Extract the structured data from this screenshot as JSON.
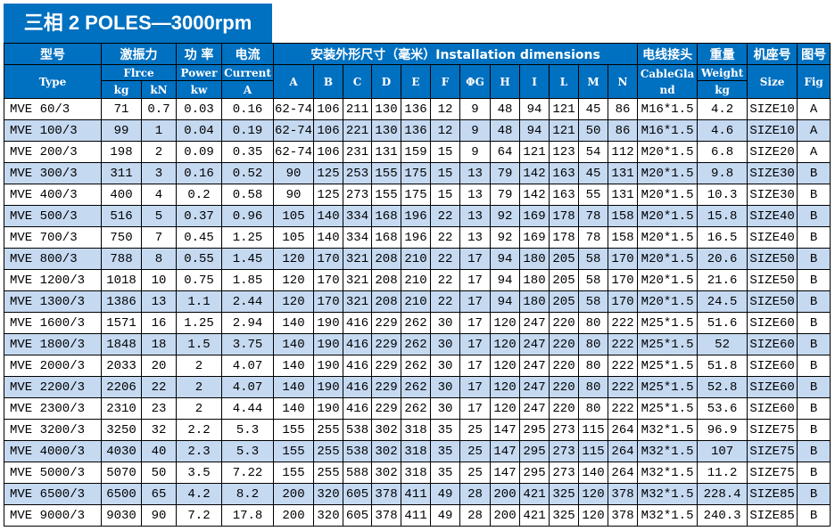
{
  "title": "三相 2 POLES—3000rpm",
  "header": {
    "type_cn": "型号",
    "type_en": "Type",
    "force_cn": "激振力",
    "force_en": "Flrce",
    "force_kg": "kg",
    "force_kn": "kN",
    "power_cn": "功 率",
    "power_en": "Power",
    "power_unit": "kw",
    "current_cn": "电流",
    "current_en": "Current",
    "current_unit": "A",
    "install": "安装外形尺寸（毫米）Installation dimensions",
    "dims": [
      "A",
      "B",
      "C",
      "D",
      "E",
      "F",
      "ΦG",
      "H",
      "I",
      "L",
      "M",
      "N"
    ],
    "cable_cn": "电线接头",
    "cable_en": "CableGland",
    "weight_cn": "重量",
    "weight_en": "Weight",
    "weight_unit": "kg",
    "size_cn": "机座号",
    "size_en": "Size",
    "fig_cn": "图号",
    "fig_en": "Fig"
  },
  "colors": {
    "header_bg": "#0070c0",
    "stripe": "#c5d9f1"
  },
  "rows": [
    [
      "MVE 60/3",
      "71",
      "0.7",
      "0.03",
      "0.16",
      "62-74",
      "106",
      "211",
      "130",
      "136",
      "12",
      "9",
      "48",
      "94",
      "121",
      "45",
      "86",
      "M16*1.5",
      "4.2",
      "SIZE10",
      "A"
    ],
    [
      "MVE 100/3",
      "99",
      "1",
      "0.04",
      "0.19",
      "62-74",
      "106",
      "221",
      "130",
      "136",
      "12",
      "9",
      "48",
      "94",
      "121",
      "50",
      "86",
      "M16*1.5",
      "4.6",
      "SIZE10",
      "A"
    ],
    [
      "MVE 200/3",
      "198",
      "2",
      "0.09",
      "0.35",
      "62-74",
      "106",
      "231",
      "131",
      "159",
      "15",
      "9",
      "64",
      "121",
      "123",
      "54",
      "112",
      "M20*1.5",
      "6.8",
      "SIZE20",
      "A"
    ],
    [
      "MVE 300/3",
      "311",
      "3",
      "0.16",
      "0.52",
      "90",
      "125",
      "253",
      "155",
      "175",
      "15",
      "13",
      "79",
      "142",
      "163",
      "45",
      "131",
      "M20*1.5",
      "9.8",
      "SIZE30",
      "B"
    ],
    [
      "MVE 400/3",
      "400",
      "4",
      "0.2",
      "0.58",
      "90",
      "125",
      "273",
      "155",
      "175",
      "15",
      "13",
      "79",
      "142",
      "163",
      "55",
      "131",
      "M20*1.5",
      "10.3",
      "SIZE30",
      "B"
    ],
    [
      "MVE 500/3",
      "516",
      "5",
      "0.37",
      "0.96",
      "105",
      "140",
      "334",
      "168",
      "196",
      "22",
      "13",
      "92",
      "169",
      "178",
      "78",
      "158",
      "M20*1.5",
      "15.8",
      "SIZE40",
      "B"
    ],
    [
      "MVE 700/3",
      "750",
      "7",
      "0.45",
      "1.25",
      "105",
      "140",
      "334",
      "168",
      "196",
      "22",
      "13",
      "92",
      "169",
      "178",
      "78",
      "158",
      "M20*1.5",
      "16.5",
      "SIZE40",
      "B"
    ],
    [
      "MVE 800/3",
      "788",
      "8",
      "0.55",
      "1.45",
      "120",
      "170",
      "321",
      "208",
      "210",
      "22",
      "17",
      "94",
      "180",
      "205",
      "58",
      "170",
      "M20*1.5",
      "20.6",
      "SIZE50",
      "B"
    ],
    [
      "MVE 1200/3",
      "1018",
      "10",
      "0.75",
      "1.85",
      "120",
      "170",
      "321",
      "208",
      "210",
      "22",
      "17",
      "94",
      "180",
      "205",
      "58",
      "170",
      "M20*1.5",
      "21.6",
      "SIZE50",
      "B"
    ],
    [
      "MVE 1300/3",
      "1386",
      "13",
      "1.1",
      "2.44",
      "120",
      "170",
      "321",
      "208",
      "210",
      "22",
      "17",
      "94",
      "180",
      "205",
      "58",
      "170",
      "M20*1.5",
      "24.5",
      "SIZE50",
      "B"
    ],
    [
      "MVE 1600/3",
      "1571",
      "16",
      "1.25",
      "2.94",
      "140",
      "190",
      "416",
      "229",
      "262",
      "30",
      "17",
      "120",
      "247",
      "220",
      "80",
      "222",
      "M25*1.5",
      "51.6",
      "SIZE60",
      "B"
    ],
    [
      "MVE 1800/3",
      "1848",
      "18",
      "1.5",
      "3.75",
      "140",
      "190",
      "416",
      "229",
      "262",
      "30",
      "17",
      "120",
      "247",
      "220",
      "80",
      "222",
      "M25*1.5",
      "52",
      "SIZE60",
      "B"
    ],
    [
      "MVE 2000/3",
      "2033",
      "20",
      "2",
      "4.07",
      "140",
      "190",
      "416",
      "229",
      "262",
      "30",
      "17",
      "120",
      "247",
      "220",
      "80",
      "222",
      "M25*1.5",
      "51.8",
      "SIZE60",
      "B"
    ],
    [
      "MVE 2200/3",
      "2206",
      "22",
      "2",
      "4.07",
      "140",
      "190",
      "416",
      "229",
      "262",
      "30",
      "17",
      "120",
      "247",
      "220",
      "80",
      "222",
      "M25*1.5",
      "52.8",
      "SIZE60",
      "B"
    ],
    [
      "MVE 2300/3",
      "2310",
      "23",
      "2",
      "4.44",
      "140",
      "190",
      "416",
      "229",
      "262",
      "30",
      "17",
      "120",
      "247",
      "220",
      "80",
      "222",
      "M25*1.5",
      "53.6",
      "SIZE60",
      "B"
    ],
    [
      "MVE 3200/3",
      "3250",
      "32",
      "2.2",
      "5.3",
      "155",
      "255",
      "538",
      "302",
      "318",
      "35",
      "25",
      "147",
      "295",
      "273",
      "115",
      "264",
      "M32*1.5",
      "96.9",
      "SIZE75",
      "B"
    ],
    [
      "MVE 4000/3",
      "4030",
      "40",
      "2.3",
      "5.3",
      "155",
      "255",
      "538",
      "302",
      "318",
      "35",
      "25",
      "147",
      "295",
      "273",
      "115",
      "264",
      "M32*1.5",
      "107",
      "SIZE75",
      "B"
    ],
    [
      "MVE 5000/3",
      "5070",
      "50",
      "3.5",
      "7.22",
      "155",
      "255",
      "588",
      "302",
      "318",
      "35",
      "25",
      "147",
      "295",
      "273",
      "140",
      "264",
      "M32*1.5",
      "11.2",
      "SIZE75",
      "B"
    ],
    [
      "MVE 6500/3",
      "6500",
      "65",
      "4.2",
      "8.2",
      "200",
      "320",
      "605",
      "378",
      "411",
      "49",
      "28",
      "200",
      "421",
      "325",
      "120",
      "378",
      "M32*1.5",
      "228.4",
      "SIZE85",
      "B"
    ],
    [
      "MVE 9000/3",
      "9030",
      "90",
      "7.2",
      "17.8",
      "200",
      "320",
      "605",
      "378",
      "411",
      "49",
      "28",
      "200",
      "421",
      "325",
      "120",
      "378",
      "M32*1.5",
      "240.3",
      "SIZE85",
      "B"
    ]
  ]
}
